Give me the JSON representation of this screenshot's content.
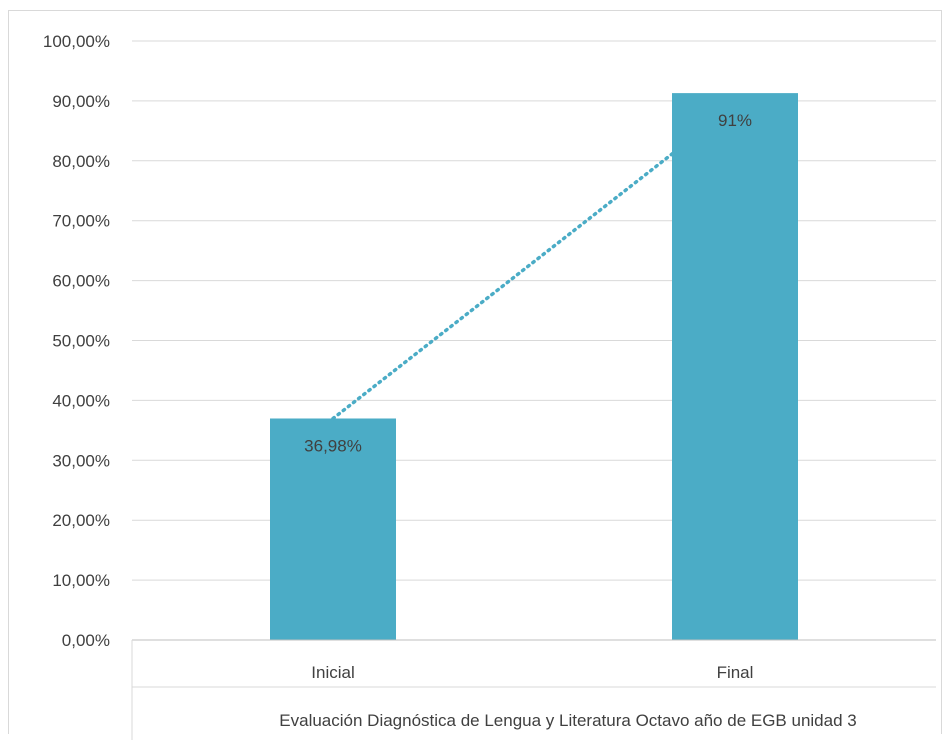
{
  "chart_data": {
    "type": "bar",
    "categories": [
      "Inicial",
      "Final"
    ],
    "values": [
      36.98,
      91.3
    ],
    "data_labels": [
      "36,98%",
      "91%"
    ],
    "ylim": [
      0,
      100
    ],
    "y_ticks": [
      0,
      10,
      20,
      30,
      40,
      50,
      60,
      70,
      80,
      90,
      100
    ],
    "y_tick_labels": [
      "0,00%",
      "10,00%",
      "20,00%",
      "30,00%",
      "40,00%",
      "50,00%",
      "60,00%",
      "70,00%",
      "80,00%",
      "90,00%",
      "100,00%"
    ],
    "xlabel": "Evaluación Diagnóstica de Lengua y Literatura Octavo año de EGB unidad 3",
    "grid": true,
    "trendline": "linear-dotted",
    "colors": {
      "bar": "#4BACC6",
      "trendline": "#4BACC6",
      "grid": "#d9d9d9"
    }
  }
}
